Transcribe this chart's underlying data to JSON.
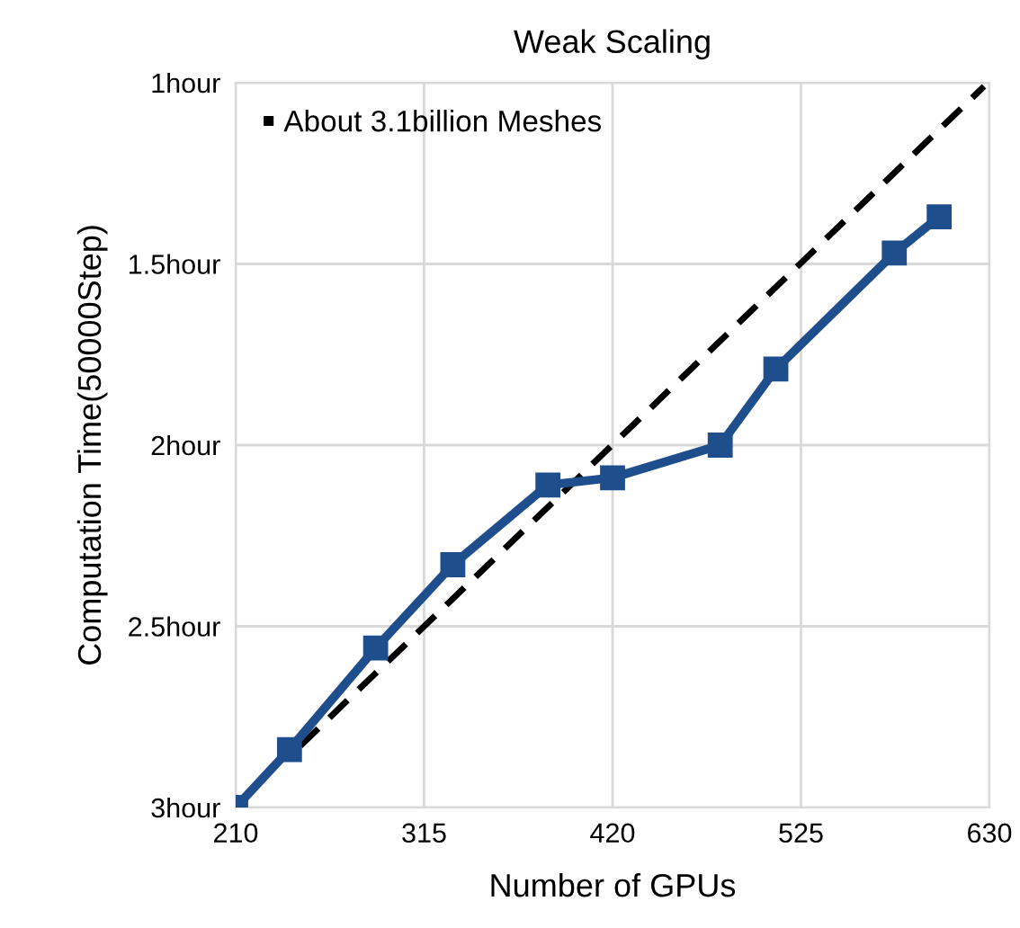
{
  "chart_data": {
    "type": "line",
    "title": "Weak Scaling",
    "xlabel": "Number of GPUs",
    "ylabel": "Computation Time(50000Step)",
    "xlim": [
      210,
      630
    ],
    "xticks": [
      210,
      315,
      420,
      525,
      630
    ],
    "ylim": [
      3,
      1
    ],
    "yticks": [
      {
        "value": 1,
        "label": "1hour"
      },
      {
        "value": 1.5,
        "label": "1.5hour"
      },
      {
        "value": 2,
        "label": "2hour"
      },
      {
        "value": 2.5,
        "label": "2.5hour"
      },
      {
        "value": 3,
        "label": "3hour"
      }
    ],
    "grid": true,
    "legend": "top left",
    "series": [
      {
        "color": "#1f4e8c",
        "marker": "square",
        "line_style": "solid",
        "x": [
          210,
          240,
          288,
          331,
          384,
          420,
          480,
          511,
          577,
          602
        ],
        "values": [
          3.0,
          2.84,
          2.56,
          2.33,
          2.11,
          2.09,
          2.0,
          1.79,
          1.47,
          1.37
        ]
      },
      {
        "name": "About 3.1billion Meshes",
        "color": "#000000",
        "marker": "none",
        "line_style": "dashed",
        "x": [
          246,
          627
        ],
        "values": [
          2.83,
          1.01
        ]
      }
    ]
  }
}
